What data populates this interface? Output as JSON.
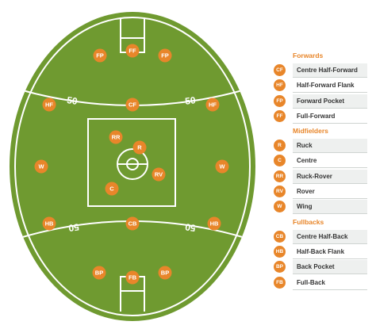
{
  "colors": {
    "field_green": "#6f9a30",
    "line_white": "#ffffff",
    "position_orange": "#e8862a"
  },
  "field": {
    "arc_label_top_left": "50",
    "arc_label_top_right": "50",
    "arc_label_bottom_left": "50",
    "arc_label_bottom_right": "50",
    "positions": [
      {
        "code": "FP"
      },
      {
        "code": "FF"
      },
      {
        "code": "FP"
      },
      {
        "code": "HF"
      },
      {
        "code": "CF"
      },
      {
        "code": "HF"
      },
      {
        "code": "RR"
      },
      {
        "code": "R"
      },
      {
        "code": "RV"
      },
      {
        "code": "C"
      },
      {
        "code": "W"
      },
      {
        "code": "W"
      },
      {
        "code": "HB"
      },
      {
        "code": "CB"
      },
      {
        "code": "HB"
      },
      {
        "code": "BP"
      },
      {
        "code": "FB"
      },
      {
        "code": "BP"
      }
    ]
  },
  "legend": {
    "groups": [
      {
        "heading": "Forwards",
        "items": [
          {
            "code": "CF",
            "label": "Centre Half-Forward"
          },
          {
            "code": "HF",
            "label": "Half-Forward Flank"
          },
          {
            "code": "FP",
            "label": "Forward Pocket"
          },
          {
            "code": "FF",
            "label": "Full-Forward"
          }
        ]
      },
      {
        "heading": "Midfielders",
        "items": [
          {
            "code": "R",
            "label": "Ruck"
          },
          {
            "code": "C",
            "label": "Centre"
          },
          {
            "code": "RR",
            "label": "Ruck-Rover"
          },
          {
            "code": "RV",
            "label": "Rover"
          },
          {
            "code": "W",
            "label": "Wing"
          }
        ]
      },
      {
        "heading": "Fullbacks",
        "items": [
          {
            "code": "CB",
            "label": "Centre Half-Back"
          },
          {
            "code": "HB",
            "label": "Half-Back Flank"
          },
          {
            "code": "BP",
            "label": "Back Pocket"
          },
          {
            "code": "FB",
            "label": "Full-Back"
          }
        ]
      }
    ]
  }
}
